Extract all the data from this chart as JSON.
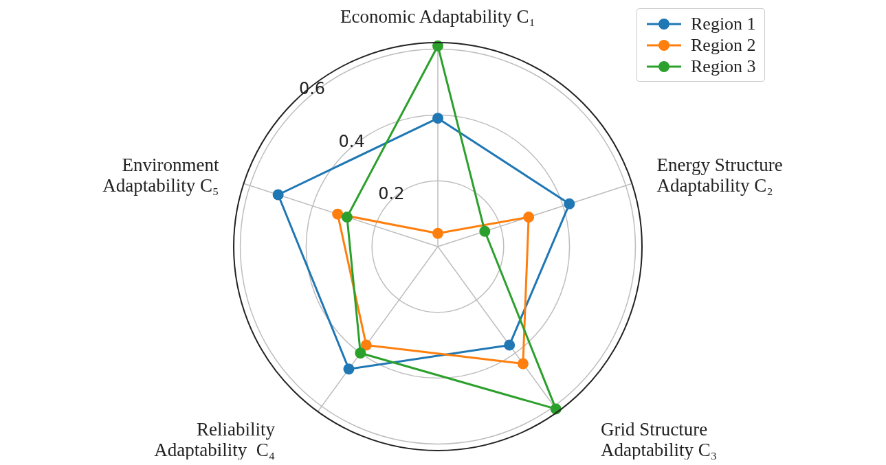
{
  "chart_data": {
    "type": "radar",
    "categories": [
      "Economic Adaptability C₁",
      "Energy Structure\nAdaptability C₂",
      "Grid Structure\nAdaptability C₃",
      "Reliability\nAdaptability  C₄",
      "Environment\nAdaptability C₅"
    ],
    "series": [
      {
        "name": "Region 1",
        "color": "#1f77b4",
        "values": [
          0.39,
          0.42,
          0.37,
          0.46,
          0.51
        ]
      },
      {
        "name": "Region 2",
        "color": "#ff7f0e",
        "values": [
          0.04,
          0.29,
          0.44,
          0.37,
          0.32
        ]
      },
      {
        "name": "Region 3",
        "color": "#2ca02c",
        "values": [
          0.61,
          0.15,
          0.61,
          0.4,
          0.29
        ]
      }
    ],
    "ylim": [
      0,
      0.62
    ],
    "yticks": [
      0.2,
      0.4,
      0.6
    ],
    "grid": true,
    "legend": "top right",
    "marker": "circle",
    "line_style": "solid"
  }
}
